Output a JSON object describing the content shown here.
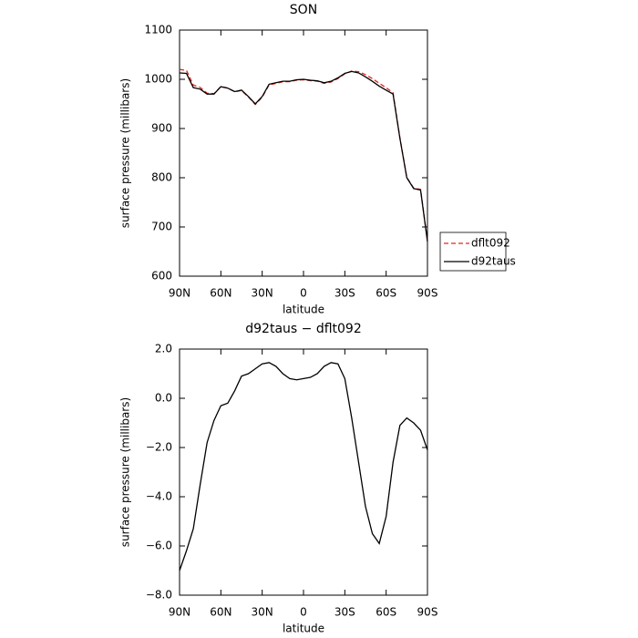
{
  "chart_data": [
    {
      "type": "line",
      "title": "SON",
      "x_label": "latitude",
      "y_label": "surface pressure (millibars)",
      "x": [
        90,
        85,
        80,
        75,
        70,
        65,
        60,
        55,
        50,
        45,
        40,
        35,
        30,
        25,
        20,
        15,
        10,
        5,
        0,
        -5,
        -10,
        -15,
        -20,
        -25,
        -30,
        -35,
        -40,
        -45,
        -50,
        -55,
        -60,
        -65,
        -70,
        -75,
        -80,
        -85,
        -90
      ],
      "series": [
        {
          "name": "dflt092",
          "color": "#e0261f",
          "linestyle": "dashed",
          "values": [
            1020,
            1018.2,
            988.3,
            983.5,
            971.8,
            970.9,
            985.3,
            982.2,
            974.7,
            977.1,
            964,
            948.8,
            963.6,
            988.55,
            991.7,
            995,
            995.2,
            998.25,
            999.2,
            997.15,
            996,
            991.7,
            994.55,
            1001.6,
            1011.2,
            1016.8,
            1015.6,
            1009.4,
            1001.5,
            991.9,
            982.8,
            972.6,
            881.1,
            800.8,
            779,
            776.3,
            672.1
          ]
        },
        {
          "name": "d92taus",
          "color": "#000000",
          "linestyle": "solid",
          "values": [
            1013,
            1012,
            983,
            980,
            970,
            970,
            985,
            982,
            975,
            978,
            965,
            950,
            965,
            990,
            993,
            996,
            996,
            999,
            1000,
            998,
            997,
            993,
            996,
            1003,
            1012,
            1016,
            1013,
            1005,
            996,
            986,
            978,
            970,
            880,
            800,
            778,
            775,
            670
          ]
        }
      ],
      "xlim": [
        90,
        -90
      ],
      "xticks": [
        {
          "value": 90,
          "label": "90N"
        },
        {
          "value": 60,
          "label": "60N"
        },
        {
          "value": 30,
          "label": "30N"
        },
        0,
        {
          "value": -30,
          "label": "30S"
        },
        {
          "value": -60,
          "label": "60S"
        },
        {
          "value": -90,
          "label": "90S"
        }
      ],
      "ylim": [
        600,
        1100
      ],
      "yticks": [
        600,
        700,
        800,
        900,
        1000,
        1100
      ],
      "legend": "right"
    },
    {
      "type": "line",
      "title": "d92taus − dflt092",
      "x_label": "latitude",
      "y_label": "surface pressure (millibars)",
      "x": [
        90,
        85,
        80,
        75,
        70,
        65,
        60,
        55,
        50,
        45,
        40,
        35,
        30,
        25,
        20,
        15,
        10,
        5,
        0,
        -5,
        -10,
        -15,
        -20,
        -25,
        -30,
        -35,
        -40,
        -45,
        -50,
        -55,
        -60,
        -65,
        -70,
        -75,
        -80,
        -85,
        -90
      ],
      "series": [
        {
          "color": "#000000",
          "linestyle": "solid",
          "values": [
            -7.0,
            -6.2,
            -5.3,
            -3.5,
            -1.8,
            -0.9,
            -0.3,
            -0.2,
            0.3,
            0.9,
            1.0,
            1.2,
            1.4,
            1.45,
            1.3,
            1.0,
            0.8,
            0.75,
            0.8,
            0.85,
            1.0,
            1.3,
            1.45,
            1.4,
            0.8,
            -0.8,
            -2.6,
            -4.4,
            -5.5,
            -5.9,
            -4.8,
            -2.6,
            -1.1,
            -0.8,
            -1.0,
            -1.3,
            -2.1
          ]
        }
      ],
      "xlim": [
        90,
        -90
      ],
      "xticks": [
        {
          "value": 90,
          "label": "90N"
        },
        {
          "value": 60,
          "label": "60N"
        },
        {
          "value": 30,
          "label": "30N"
        },
        0,
        {
          "value": -30,
          "label": "30S"
        },
        {
          "value": -60,
          "label": "60S"
        },
        {
          "value": -90,
          "label": "90S"
        }
      ],
      "ylim": [
        -8,
        2
      ],
      "yticks": [
        {
          "value": -8,
          "label": "−8.0"
        },
        {
          "value": -6,
          "label": "−6.0"
        },
        {
          "value": -4,
          "label": "−4.0"
        },
        {
          "value": -2,
          "label": "−2.0"
        },
        {
          "value": 0,
          "label": "0.0"
        },
        {
          "value": 2,
          "label": "2.0"
        }
      ]
    }
  ]
}
